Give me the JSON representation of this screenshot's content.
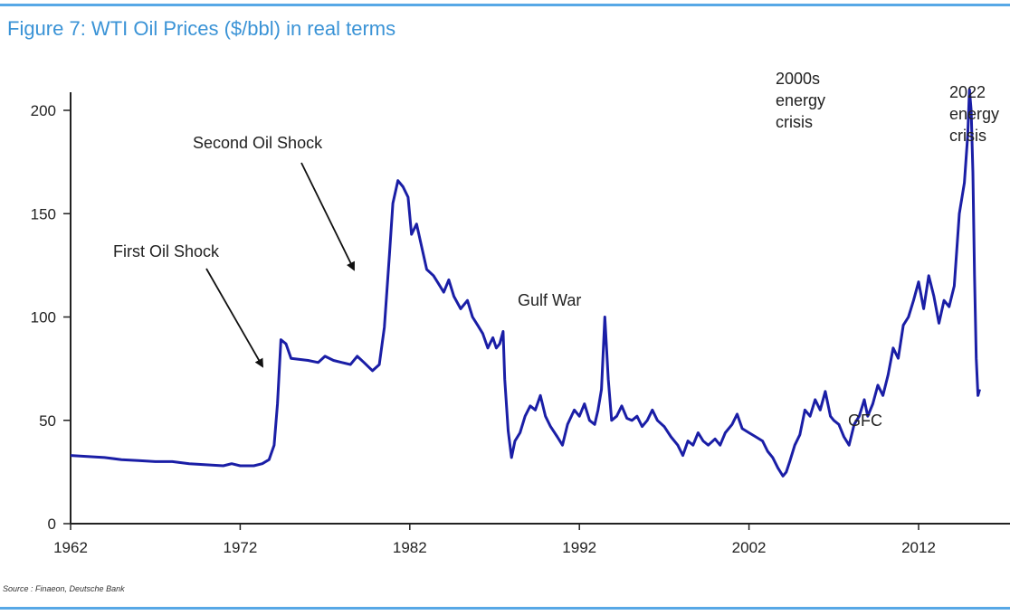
{
  "header": {
    "title": "Figure 7: WTI Oil Prices ($/bbl) in real terms"
  },
  "footer": {
    "source": "Source : Finaeon, Deutsche Bank"
  },
  "colors": {
    "series": "#1a1ea6",
    "accent_rule": "#57a8e6",
    "title": "#3a93d6"
  },
  "chart_data": {
    "type": "line",
    "title": "Figure 7: WTI Oil Prices ($/bbl) in real terms",
    "xlabel": "",
    "ylabel": "",
    "xlim": [
      1962,
      2016.5
    ],
    "ylim": [
      0,
      210
    ],
    "x_ticks": [
      "1962",
      "1972",
      "1982",
      "1992",
      "2002",
      "2012"
    ],
    "y_ticks": [
      "0",
      "50",
      "100",
      "150",
      "200"
    ],
    "grid": false,
    "legend": "none",
    "series": [
      {
        "points": [
          [
            1962.0,
            33
          ],
          [
            1963.0,
            32.5
          ],
          [
            1964.0,
            32
          ],
          [
            1965.0,
            31
          ],
          [
            1966.0,
            30.5
          ],
          [
            1967.0,
            30
          ],
          [
            1968.0,
            30
          ],
          [
            1969.0,
            29
          ],
          [
            1970.0,
            28.5
          ],
          [
            1971.0,
            28
          ],
          [
            1971.5,
            29
          ],
          [
            1972.0,
            28
          ],
          [
            1972.8,
            28
          ],
          [
            1973.3,
            29
          ],
          [
            1973.7,
            31
          ],
          [
            1974.0,
            38
          ],
          [
            1974.2,
            58
          ],
          [
            1974.4,
            89
          ],
          [
            1974.7,
            87
          ],
          [
            1975.0,
            80
          ],
          [
            1976.0,
            79
          ],
          [
            1976.6,
            78
          ],
          [
            1977.0,
            81
          ],
          [
            1977.5,
            79
          ],
          [
            1978.0,
            78
          ],
          [
            1978.5,
            77
          ],
          [
            1978.9,
            81
          ],
          [
            1979.3,
            78
          ],
          [
            1979.8,
            74
          ],
          [
            1980.2,
            77
          ],
          [
            1980.5,
            95
          ],
          [
            1980.8,
            130
          ],
          [
            1981.0,
            155
          ],
          [
            1981.3,
            166
          ],
          [
            1981.6,
            163
          ],
          [
            1981.9,
            158
          ],
          [
            1982.1,
            140
          ],
          [
            1982.4,
            145
          ],
          [
            1982.7,
            134
          ],
          [
            1983.0,
            123
          ],
          [
            1983.4,
            120
          ],
          [
            1983.7,
            116
          ],
          [
            1984.0,
            112
          ],
          [
            1984.3,
            118
          ],
          [
            1984.6,
            110
          ],
          [
            1985.0,
            104
          ],
          [
            1985.4,
            108
          ],
          [
            1985.7,
            100
          ],
          [
            1986.0,
            96
          ],
          [
            1986.3,
            92
          ],
          [
            1986.6,
            85
          ],
          [
            1986.9,
            90
          ],
          [
            1987.1,
            85
          ],
          [
            1987.3,
            87
          ],
          [
            1987.5,
            93
          ],
          [
            1987.6,
            70
          ],
          [
            1987.8,
            45
          ],
          [
            1988.0,
            32
          ],
          [
            1988.2,
            40
          ],
          [
            1988.5,
            44
          ],
          [
            1988.8,
            52
          ],
          [
            1989.1,
            57
          ],
          [
            1989.4,
            55
          ],
          [
            1989.7,
            62
          ],
          [
            1990.0,
            52
          ],
          [
            1990.3,
            47
          ],
          [
            1990.7,
            42
          ],
          [
            1991.0,
            38
          ],
          [
            1991.3,
            48
          ],
          [
            1991.7,
            55
          ],
          [
            1992.0,
            52
          ],
          [
            1992.3,
            58
          ],
          [
            1992.6,
            50
          ],
          [
            1992.9,
            48
          ],
          [
            1993.1,
            55
          ],
          [
            1993.3,
            65
          ],
          [
            1993.5,
            100
          ],
          [
            1993.7,
            70
          ],
          [
            1993.9,
            50
          ],
          [
            1994.2,
            52
          ],
          [
            1994.5,
            57
          ],
          [
            1994.8,
            51
          ],
          [
            1995.1,
            50
          ],
          [
            1995.4,
            52
          ],
          [
            1995.7,
            47
          ],
          [
            1996.0,
            50
          ],
          [
            1996.3,
            55
          ],
          [
            1996.6,
            50
          ],
          [
            1997.0,
            47
          ],
          [
            1997.4,
            42
          ],
          [
            1997.8,
            38
          ],
          [
            1998.1,
            33
          ],
          [
            1998.4,
            40
          ],
          [
            1998.7,
            38
          ],
          [
            1999.0,
            44
          ],
          [
            1999.3,
            40
          ],
          [
            1999.6,
            38
          ],
          [
            2000.0,
            41
          ],
          [
            2000.3,
            38
          ],
          [
            2000.6,
            44
          ],
          [
            2001.0,
            48
          ],
          [
            2001.3,
            53
          ],
          [
            2001.6,
            46
          ],
          [
            2002.0,
            44
          ],
          [
            2002.4,
            42
          ],
          [
            2002.8,
            40
          ],
          [
            2003.1,
            35
          ],
          [
            2003.4,
            32
          ],
          [
            2003.7,
            27
          ],
          [
            2004.0,
            23
          ],
          [
            2004.2,
            25
          ],
          [
            2004.4,
            30
          ],
          [
            2004.7,
            38
          ],
          [
            2005.0,
            43
          ],
          [
            2005.3,
            55
          ],
          [
            2005.6,
            52
          ],
          [
            2005.9,
            60
          ],
          [
            2006.2,
            55
          ],
          [
            2006.5,
            64
          ],
          [
            2006.8,
            52
          ],
          [
            2007.0,
            50
          ],
          [
            2007.3,
            48
          ],
          [
            2007.6,
            42
          ],
          [
            2007.9,
            38
          ],
          [
            2008.2,
            48
          ],
          [
            2008.5,
            52
          ],
          [
            2008.8,
            60
          ],
          [
            2009.0,
            52
          ],
          [
            2009.3,
            58
          ],
          [
            2009.6,
            67
          ],
          [
            2009.9,
            62
          ],
          [
            2010.2,
            72
          ],
          [
            2010.5,
            85
          ],
          [
            2010.8,
            80
          ],
          [
            2011.1,
            96
          ],
          [
            2011.4,
            100
          ],
          [
            2011.7,
            108
          ],
          [
            2012.0,
            117
          ],
          [
            2012.3,
            104
          ],
          [
            2012.6,
            120
          ],
          [
            2012.9,
            110
          ],
          [
            2013.2,
            97
          ],
          [
            2013.5,
            108
          ],
          [
            2013.8,
            105
          ],
          [
            2014.1,
            115
          ],
          [
            2014.4,
            150
          ],
          [
            2014.7,
            165
          ],
          [
            2014.9,
            188
          ],
          [
            2015.0,
            210
          ],
          [
            2015.1,
            200
          ],
          [
            2015.2,
            170
          ],
          [
            2015.3,
            120
          ],
          [
            2015.4,
            80
          ],
          [
            2015.5,
            62
          ],
          [
            2015.6,
            65
          ]
        ]
      }
    ],
    "annotations": [
      {
        "text": "First Oil Shock"
      },
      {
        "text": "Second Oil Shock"
      },
      {
        "text": "Gulf War"
      },
      {
        "lines": [
          "2000s",
          "energy",
          "crisis"
        ]
      },
      {
        "text": "GFC"
      },
      {
        "lines": [
          "2022",
          "energy",
          "crisis"
        ]
      }
    ]
  }
}
